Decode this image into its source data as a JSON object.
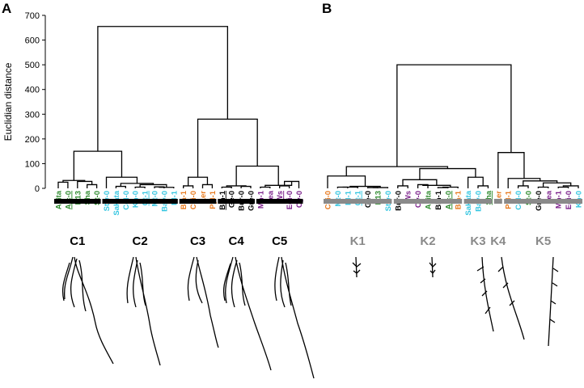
{
  "chart_data": [
    {
      "type": "dendrogram",
      "panel": "A",
      "ylabel": "Euclidian distance",
      "ylim": [
        0,
        700
      ],
      "yticks": [
        0,
        100,
        200,
        300,
        400,
        500,
        600,
        700
      ],
      "bar_color": "#000000",
      "label_color": "#000000",
      "leaves": [
        {
          "name": "Akita",
          "color": "#2e8b2e"
        },
        {
          "name": "Alc-0",
          "color": "#2e8b2e",
          "underline": true
        },
        {
          "name": "N13",
          "color": "#2e8b2e"
        },
        {
          "name": "Sha",
          "color": "#2e8b2e"
        },
        {
          "name": "St-0",
          "color": "#2e8b2e"
        },
        {
          "name": "Stw-0",
          "color": "#33c5e0"
        },
        {
          "name": "Sakata",
          "color": "#33c5e0"
        },
        {
          "name": "Col-0",
          "color": "#33c5e0"
        },
        {
          "name": "Kn-0",
          "color": "#33c5e0"
        },
        {
          "name": "Ct-1",
          "color": "#33c5e0",
          "underline": true
        },
        {
          "name": "Mt-0",
          "color": "#33c5e0"
        },
        {
          "name": "Bay-0",
          "color": "#33c5e0"
        },
        {
          "name": "Bl-1",
          "color": "#33c5e0"
        },
        {
          "name": "Bla-1",
          "color": "#e87a1e"
        },
        {
          "name": "Cvi-0",
          "color": "#e87a1e"
        },
        {
          "name": "Ler",
          "color": "#e87a1e"
        },
        {
          "name": "Pyl-1",
          "color": "#e87a1e"
        },
        {
          "name": "Blh-1",
          "color": "#000000",
          "underline": true
        },
        {
          "name": "Ge-0",
          "color": "#000000"
        },
        {
          "name": "Bur-0",
          "color": "#000000"
        },
        {
          "name": "Gre-0",
          "color": "#000000"
        },
        {
          "name": "Mh-1",
          "color": "#7a1f8a"
        },
        {
          "name": "Jea",
          "color": "#7a1f8a"
        },
        {
          "name": "Ws",
          "color": "#7a1f8a",
          "underline": true
        },
        {
          "name": "Edi-0",
          "color": "#7a1f8a"
        },
        {
          "name": "Oy-0",
          "color": "#7a1f8a"
        }
      ],
      "merges": [
        {
          "left": 0,
          "right": 1,
          "height": 25
        },
        {
          "left": 3,
          "right": 4,
          "height": 15
        },
        {
          "left": 2,
          "right": 27,
          "height": 28
        },
        {
          "left": 26,
          "right": 28,
          "height": 32
        },
        {
          "left": 6,
          "right": 7,
          "height": 8
        },
        {
          "left": 8,
          "right": 9,
          "height": 5
        },
        {
          "left": 10,
          "right": 11,
          "height": 6
        },
        {
          "left": 32,
          "right": 12,
          "height": 4
        },
        {
          "left": 31,
          "right": 33,
          "height": 15
        },
        {
          "left": 30,
          "right": 34,
          "height": 20
        },
        {
          "left": 5,
          "right": 35,
          "height": 45
        },
        {
          "left": 29,
          "right": 36,
          "height": 150
        },
        {
          "left": 13,
          "right": 14,
          "height": 10
        },
        {
          "left": 15,
          "right": 16,
          "height": 15
        },
        {
          "left": 38,
          "right": 39,
          "height": 45
        },
        {
          "left": 17,
          "right": 18,
          "height": 5
        },
        {
          "left": 19,
          "right": 20,
          "height": 8
        },
        {
          "left": 41,
          "right": 42,
          "height": 10
        },
        {
          "left": 21,
          "right": 22,
          "height": 5
        },
        {
          "left": 23,
          "right": 24,
          "height": 10
        },
        {
          "left": 45,
          "right": 25,
          "height": 28
        },
        {
          "left": 44,
          "right": 46,
          "height": 12
        },
        {
          "left": 43,
          "right": 47,
          "height": 90
        },
        {
          "left": 40,
          "right": 48,
          "height": 280
        },
        {
          "left": 37,
          "right": 49,
          "height": 655
        }
      ],
      "clusters": [
        {
          "label": "C1",
          "from": 0,
          "to": 4
        },
        {
          "label": "C2",
          "from": 5,
          "to": 12
        },
        {
          "label": "C3",
          "from": 13,
          "to": 16
        },
        {
          "label": "C4",
          "from": 17,
          "to": 20
        },
        {
          "label": "C5",
          "from": 21,
          "to": 25
        }
      ]
    },
    {
      "type": "dendrogram",
      "panel": "B",
      "ylim": [
        0,
        700
      ],
      "bar_color": "#8a8a8a",
      "label_color": "#8a8a8a",
      "leaves": [
        {
          "name": "Cvi-0",
          "color": "#e87a1e"
        },
        {
          "name": "Mt-0",
          "color": "#33c5e0"
        },
        {
          "name": "Bl-1",
          "color": "#33c5e0"
        },
        {
          "name": "Ct-1",
          "color": "#33c5e0",
          "underline": true
        },
        {
          "name": "Ge-0",
          "color": "#000000"
        },
        {
          "name": "N13",
          "color": "#2e8b2e"
        },
        {
          "name": "Stw-0",
          "color": "#33c5e0"
        },
        {
          "name": "Bur-0",
          "color": "#000000"
        },
        {
          "name": "Ws",
          "color": "#7a1f8a"
        },
        {
          "name": "Oy-0",
          "color": "#7a1f8a"
        },
        {
          "name": "Akita",
          "color": "#2e8b2e"
        },
        {
          "name": "Blh-1",
          "color": "#000000"
        },
        {
          "name": "Alc-0",
          "color": "#2e8b2e",
          "underline": true
        },
        {
          "name": "Bla-1",
          "color": "#e87a1e"
        },
        {
          "name": "Sakata",
          "color": "#33c5e0"
        },
        {
          "name": "Bay-0",
          "color": "#33c5e0"
        },
        {
          "name": "Sha",
          "color": "#2e8b2e",
          "underline": true
        },
        {
          "name": "Ler",
          "color": "#e87a1e"
        },
        {
          "name": "Pyl-1",
          "color": "#e87a1e"
        },
        {
          "name": "Col-0",
          "color": "#33c5e0"
        },
        {
          "name": "St-0",
          "color": "#2e8b2e"
        },
        {
          "name": "Gre-0",
          "color": "#000000"
        },
        {
          "name": "Jea",
          "color": "#7a1f8a"
        },
        {
          "name": "Mh-1",
          "color": "#7a1f8a"
        },
        {
          "name": "Edi-0",
          "color": "#7a1f8a"
        },
        {
          "name": "Kn-0",
          "color": "#33c5e0"
        }
      ],
      "merges": [
        {
          "left": 1,
          "right": 2,
          "height": 5
        },
        {
          "left": 26,
          "right": 3,
          "height": 5
        },
        {
          "left": 4,
          "right": 5,
          "height": 3
        },
        {
          "left": 28,
          "right": 6,
          "height": 3
        },
        {
          "left": 27,
          "right": 29,
          "height": 8
        },
        {
          "left": 0,
          "right": 30,
          "height": 50
        },
        {
          "left": 7,
          "right": 8,
          "height": 10
        },
        {
          "left": 9,
          "right": 10,
          "height": 15
        },
        {
          "left": 11,
          "right": 12,
          "height": 3
        },
        {
          "left": 34,
          "right": 13,
          "height": 5
        },
        {
          "left": 33,
          "right": 35,
          "height": 12
        },
        {
          "left": 32,
          "right": 36,
          "height": 35
        },
        {
          "left": 15,
          "right": 16,
          "height": 10
        },
        {
          "left": 14,
          "right": 38,
          "height": 45
        },
        {
          "left": 37,
          "right": 39,
          "height": 80
        },
        {
          "left": 31,
          "right": 40,
          "height": 88
        },
        {
          "left": 19,
          "right": 20,
          "height": 10
        },
        {
          "left": 21,
          "right": 22,
          "height": 5
        },
        {
          "left": 23,
          "right": 24,
          "height": 5
        },
        {
          "left": 44,
          "right": 25,
          "height": 10
        },
        {
          "left": 43,
          "right": 45,
          "height": 22
        },
        {
          "left": 42,
          "right": 46,
          "height": 30
        },
        {
          "left": 18,
          "right": 47,
          "height": 40
        },
        {
          "left": 17,
          "right": 48,
          "height": 145
        },
        {
          "left": 41,
          "right": 49,
          "height": 500
        }
      ],
      "clusters": [
        {
          "label": "K1",
          "from": 0,
          "to": 6
        },
        {
          "label": "K2",
          "from": 7,
          "to": 13
        },
        {
          "label": "K3",
          "from": 14,
          "to": 16
        },
        {
          "label": "K4",
          "from": 17,
          "to": 17
        },
        {
          "label": "K5",
          "from": 18,
          "to": 25
        }
      ]
    }
  ]
}
